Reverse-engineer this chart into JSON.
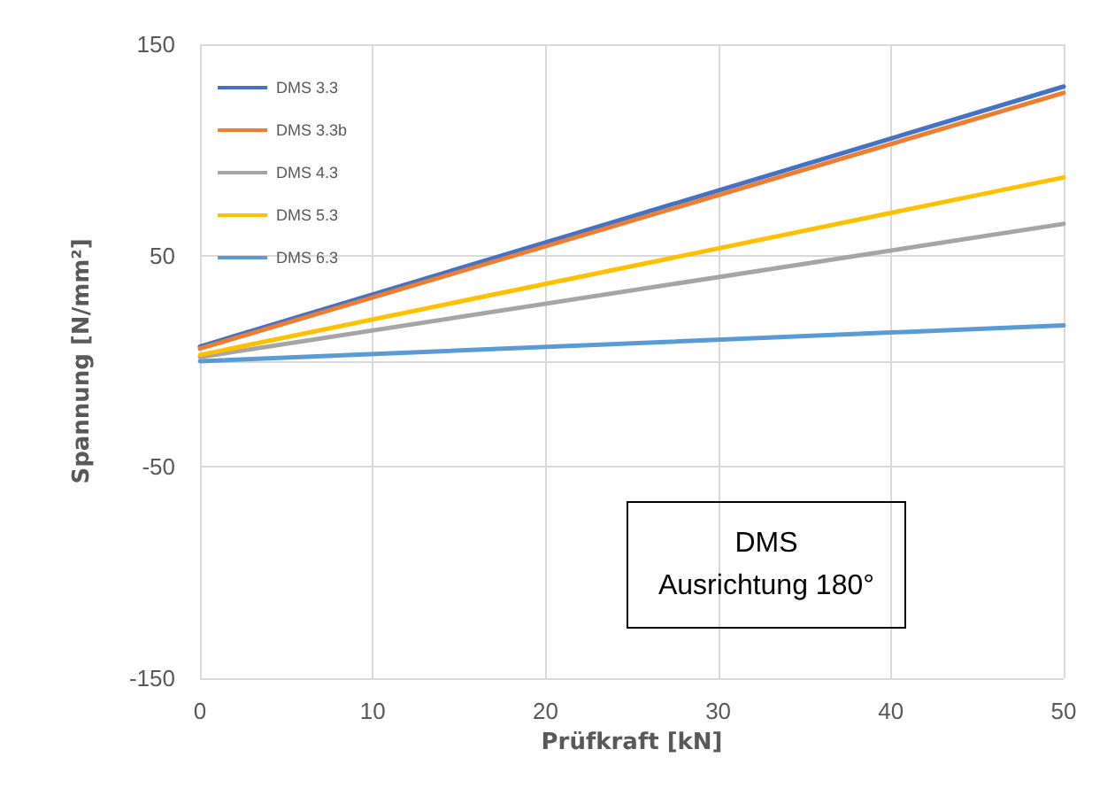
{
  "chart_data": {
    "type": "line",
    "xlabel": "Prüfkraft [kN]",
    "ylabel": "Spannung [N/mm²]",
    "x": [
      0,
      50
    ],
    "series": [
      {
        "name": "DMS 3.3",
        "color": "#4472c4",
        "values": [
          7,
          130
        ]
      },
      {
        "name": "DMS 3.3b",
        "color": "#ed7d31",
        "values": [
          6,
          127
        ]
      },
      {
        "name": "DMS 4.3",
        "color": "#a5a5a5",
        "values": [
          2,
          65
        ]
      },
      {
        "name": "DMS 5.3",
        "color": "#ffc000",
        "values": [
          3,
          87
        ]
      },
      {
        "name": "DMS 6.3",
        "color": "#5b9bd5",
        "values": [
          0,
          17
        ]
      }
    ],
    "xlim": [
      0,
      50
    ],
    "xticks": [
      0,
      10,
      20,
      30,
      40,
      50
    ],
    "ylim": [
      -150,
      150
    ],
    "yticks": [
      -150,
      -50,
      50,
      150
    ],
    "grid": true,
    "legend": "top left",
    "marker": "none",
    "line_style": "solid",
    "annotations": [
      "DMS\nAusrichtung 180°"
    ]
  }
}
